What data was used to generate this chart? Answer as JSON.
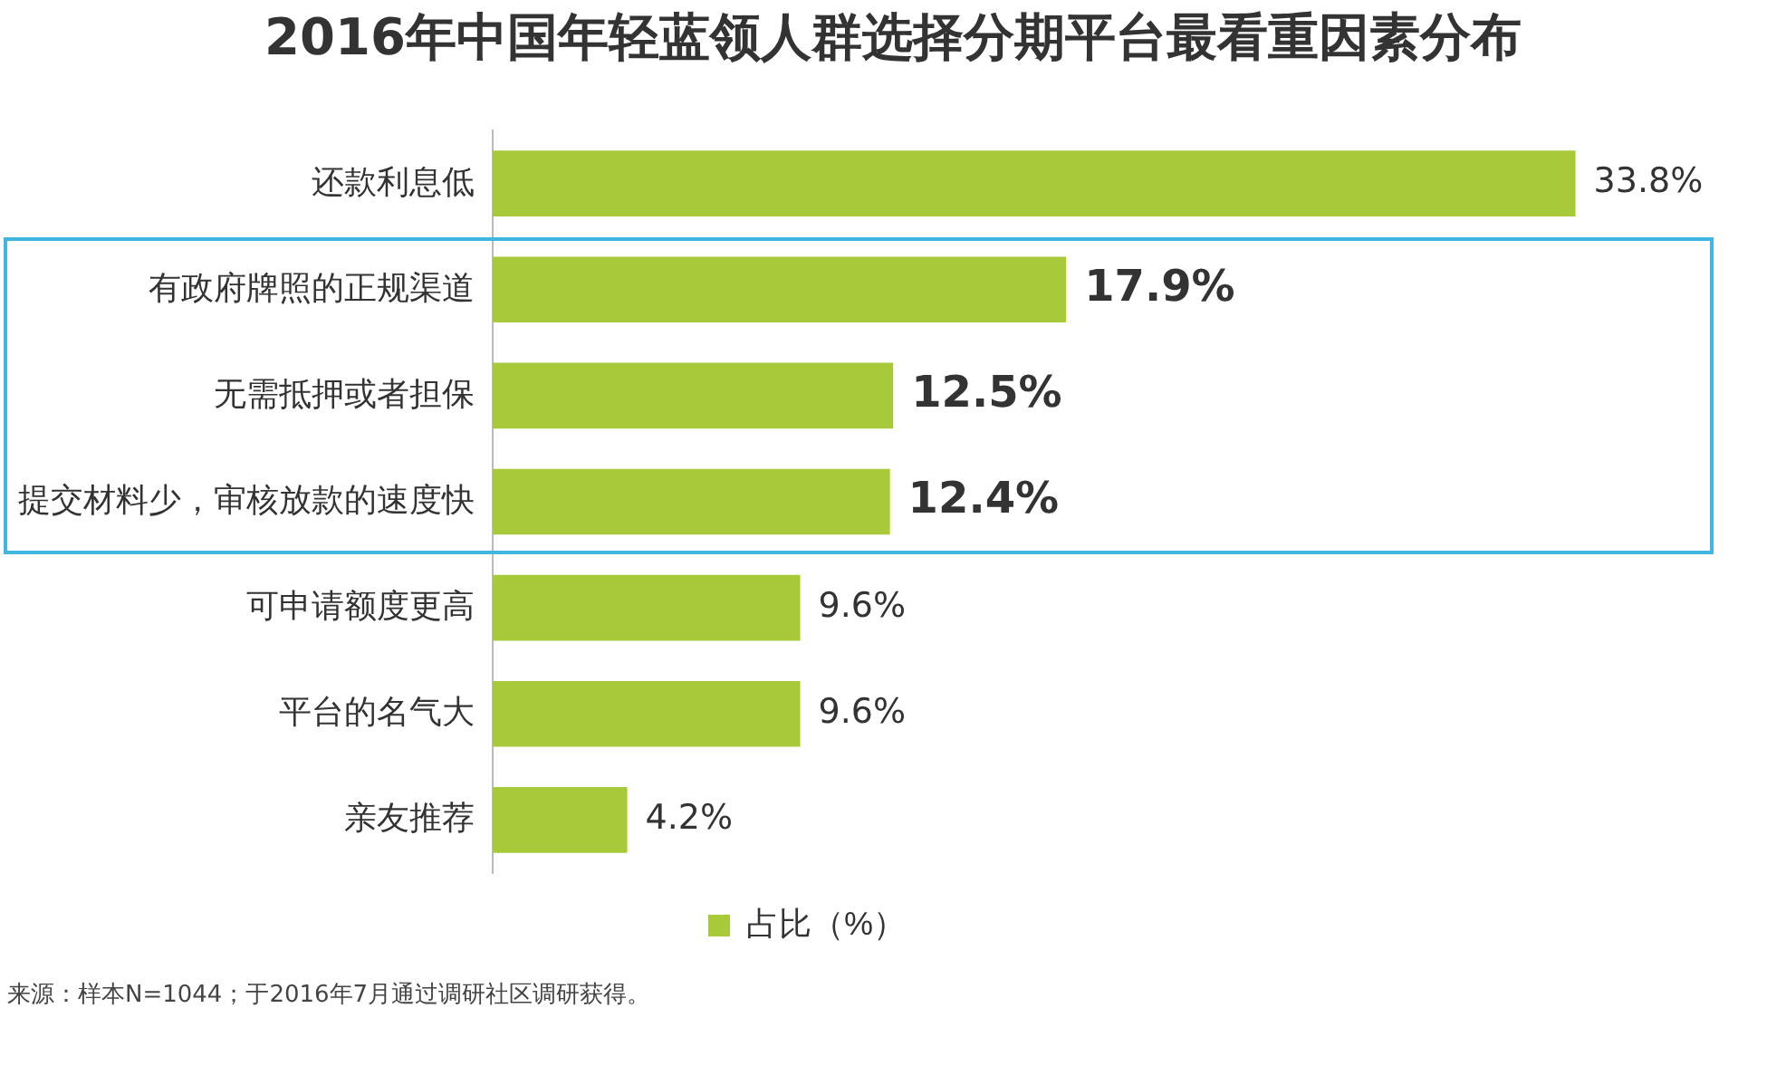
{
  "chart_data": {
    "type": "bar",
    "orientation": "horizontal",
    "title": "2016年中国年轻蓝领人群选择分期平台最看重因素分布",
    "categories": [
      "还款利息低",
      "有政府牌照的正规渠道",
      "无需抵押或者担保",
      "提交材料少，审核放款的速度快",
      "可申请额度更高",
      "平台的名气大",
      "亲友推荐"
    ],
    "series": [
      {
        "name": "占比（%）",
        "color": "#a8c93a",
        "values": [
          33.8,
          17.9,
          12.5,
          12.4,
          9.6,
          9.6,
          4.2
        ],
        "value_labels": [
          "33.8%",
          "17.9%",
          "12.5%",
          "12.4%",
          "9.6%",
          "9.6%",
          "4.2%"
        ]
      }
    ],
    "tick_labels": "y",
    "grid": false,
    "legend": "bottom",
    "annotations": [
      "来源：样本N=1044；于2016年7月通过调研社区调研获得。"
    ]
  }
}
